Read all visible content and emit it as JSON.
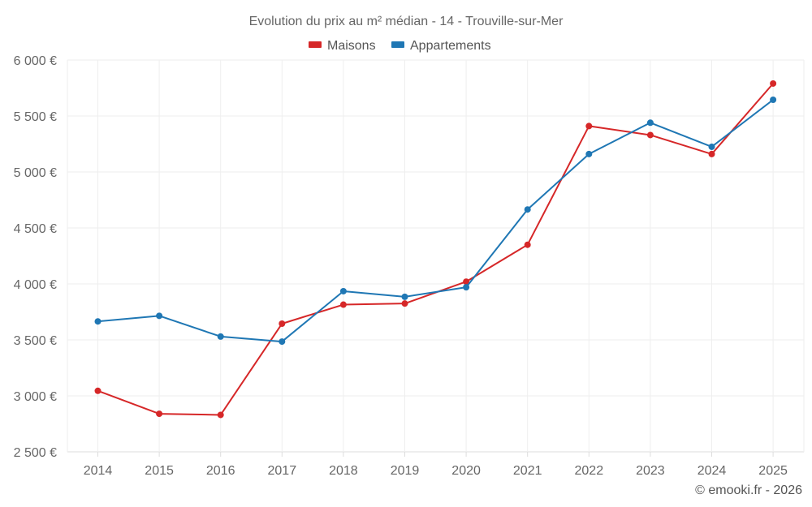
{
  "chart_data": {
    "type": "line",
    "title": "Evolution du prix au m² médian - 14 - Trouville-sur-Mer",
    "categories": [
      "2014",
      "2015",
      "2016",
      "2017",
      "2018",
      "2019",
      "2020",
      "2021",
      "2022",
      "2023",
      "2024",
      "2025"
    ],
    "series": [
      {
        "name": "Maisons",
        "color": "#d62728",
        "values": [
          3045,
          2840,
          2830,
          3645,
          3815,
          3825,
          4020,
          4350,
          5410,
          5330,
          5160,
          5790
        ]
      },
      {
        "name": "Appartements",
        "color": "#1f77b4",
        "values": [
          3665,
          3715,
          3530,
          3485,
          3935,
          3885,
          3970,
          4665,
          5160,
          5440,
          5225,
          5645
        ]
      }
    ],
    "ylim": [
      2500,
      6000
    ],
    "y_ticks": [
      2500,
      3000,
      3500,
      4000,
      4500,
      5000,
      5500,
      6000
    ],
    "y_tick_labels": [
      "2 500 €",
      "3 000 €",
      "3 500 €",
      "4 000 €",
      "4 500 €",
      "5 000 €",
      "5 500 €",
      "6 000 €"
    ],
    "xlabel": "",
    "ylabel": "",
    "grid": true,
    "legend_position": "top-center"
  },
  "footer": {
    "credit": "© emooki.fr - 2026"
  },
  "colors": {
    "maisons": "#d62728",
    "appartements": "#1f77b4",
    "grid": "#eeeeee"
  }
}
